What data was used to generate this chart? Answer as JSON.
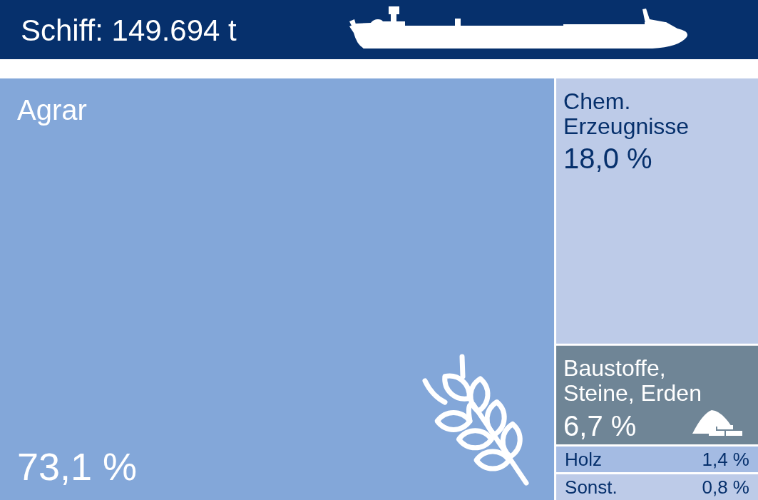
{
  "chart_data": {
    "type": "other",
    "title": "Schiff: 149.694 t",
    "categories": [
      "Agrar",
      "Chem. Erzeugnisse",
      "Baustoffe, Steine, Erden",
      "Holz",
      "Sonst."
    ],
    "values": [
      73.1,
      18.0,
      6.7,
      1.4,
      0.8
    ],
    "colors": [
      "#83a7d9",
      "#bdcbe8",
      "#6f8596",
      "#a4bbe3",
      "#bdcbe8"
    ],
    "value_labels": [
      "73,1 %",
      "18,0 %",
      "6,7 %",
      "1,4 %",
      "0,8 %"
    ]
  }
}
